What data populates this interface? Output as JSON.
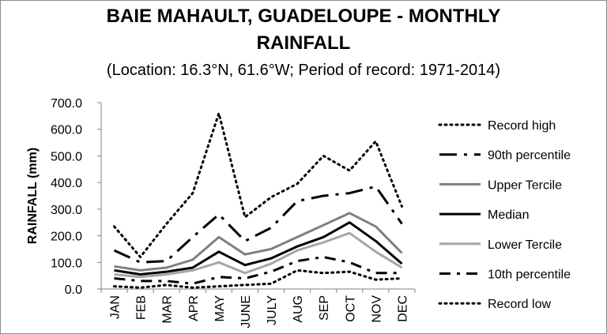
{
  "title_line1": "BAIE MAHAULT, GUADELOUPE - MONTHLY",
  "title_line2": "RAINFALL",
  "subtitle": "(Location: 16.3°N, 61.6°W; Period of record: 1971-2014)",
  "chart_data": {
    "type": "line",
    "title": "BAIE MAHAULT, GUADELOUPE - MONTHLY RAINFALL",
    "subtitle": "(Location: 16.3°N, 61.6°W; Period of record: 1971-2014)",
    "xlabel": "",
    "ylabel": "RAINFALL (mm)",
    "categories": [
      "JAN",
      "FEB",
      "MAR",
      "APR",
      "MAY",
      "JUNE",
      "JULY",
      "AUG",
      "SEP",
      "OCT",
      "NOV",
      "DEC"
    ],
    "ylim": [
      0,
      700
    ],
    "yticks": [
      "0.0",
      "100.0",
      "200.0",
      "300.0",
      "400.0",
      "500.0",
      "600.0",
      "700.0"
    ],
    "grid": false,
    "legend_position": "right",
    "series": [
      {
        "name": "Record high",
        "style": "dotted",
        "color": "#000000",
        "width": 3,
        "values": [
          235,
          120,
          245,
          360,
          660,
          270,
          345,
          395,
          500,
          445,
          555,
          310
        ]
      },
      {
        "name": "90th percentile",
        "style": "longdash-dot",
        "color": "#000000",
        "width": 3,
        "values": [
          145,
          100,
          105,
          195,
          280,
          180,
          230,
          330,
          350,
          360,
          385,
          245
        ]
      },
      {
        "name": "Upper Tercile",
        "style": "solid",
        "color": "#808080",
        "width": 3,
        "values": [
          85,
          70,
          80,
          110,
          195,
          130,
          150,
          195,
          240,
          285,
          235,
          135
        ]
      },
      {
        "name": "Median",
        "style": "solid",
        "color": "#000000",
        "width": 3,
        "values": [
          70,
          55,
          65,
          80,
          140,
          90,
          115,
          160,
          195,
          250,
          180,
          95
        ]
      },
      {
        "name": "Lower Tercile",
        "style": "solid",
        "color": "#a6a6a6",
        "width": 3,
        "values": [
          55,
          45,
          55,
          70,
          100,
          60,
          95,
          145,
          175,
          210,
          140,
          80
        ]
      },
      {
        "name": "10th percentile",
        "style": "dash-dot",
        "color": "#000000",
        "width": 3,
        "values": [
          40,
          30,
          30,
          20,
          45,
          40,
          65,
          105,
          120,
          100,
          60,
          60
        ]
      },
      {
        "name": "Record low",
        "style": "dotted",
        "color": "#000000",
        "width": 3,
        "values": [
          10,
          5,
          15,
          5,
          10,
          15,
          20,
          70,
          60,
          65,
          35,
          40
        ]
      }
    ]
  }
}
